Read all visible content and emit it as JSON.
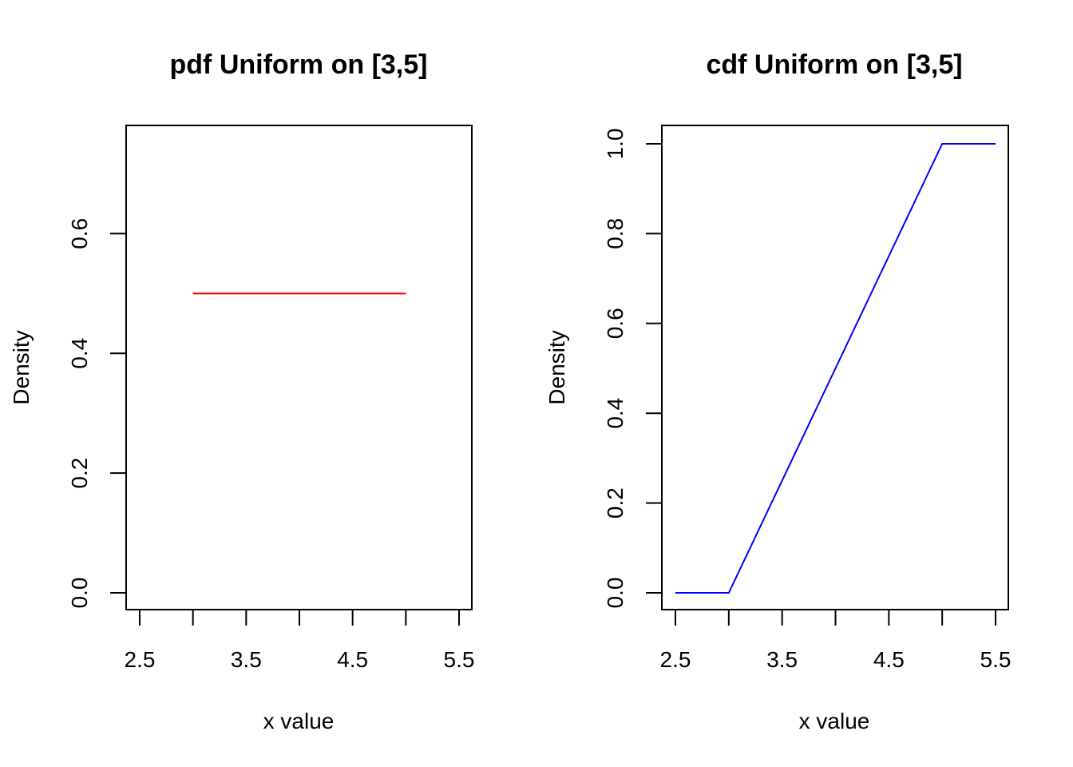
{
  "chart_data": [
    {
      "type": "line",
      "title": "pdf Uniform on [3,5]",
      "xlabel": "x value",
      "ylabel": "Density",
      "xlim": [
        2.5,
        5.5
      ],
      "ylim": [
        0,
        0.75
      ],
      "xticks": [
        2.5,
        3,
        3.5,
        4,
        4.5,
        5,
        5.5
      ],
      "xtick_labels": [
        "2.5",
        "",
        "3.5",
        "",
        "4.5",
        "",
        "5.5"
      ],
      "yticks": [
        0,
        0.2,
        0.4,
        0.6
      ],
      "ytick_labels": [
        "0.0",
        "0.2",
        "0.4",
        "0.6"
      ],
      "grid": false,
      "series": [
        {
          "color": "#ff0000",
          "x": [
            3,
            5
          ],
          "y": [
            0.5,
            0.5
          ]
        }
      ]
    },
    {
      "type": "line",
      "title": "cdf Uniform on [3,5]",
      "xlabel": "x value",
      "ylabel": "Density",
      "xlim": [
        2.5,
        5.5
      ],
      "ylim": [
        0,
        1
      ],
      "xticks": [
        2.5,
        3,
        3.5,
        4,
        4.5,
        5,
        5.5
      ],
      "xtick_labels": [
        "2.5",
        "",
        "3.5",
        "",
        "4.5",
        "",
        "5.5"
      ],
      "yticks": [
        0,
        0.2,
        0.4,
        0.6,
        0.8,
        1.0
      ],
      "ytick_labels": [
        "0.0",
        "0.2",
        "0.4",
        "0.6",
        "0.8",
        "1.0"
      ],
      "grid": false,
      "series": [
        {
          "color": "#0000ff",
          "x": [
            2.5,
            3,
            5,
            5.5
          ],
          "y": [
            0,
            0,
            1,
            1
          ]
        }
      ]
    }
  ]
}
